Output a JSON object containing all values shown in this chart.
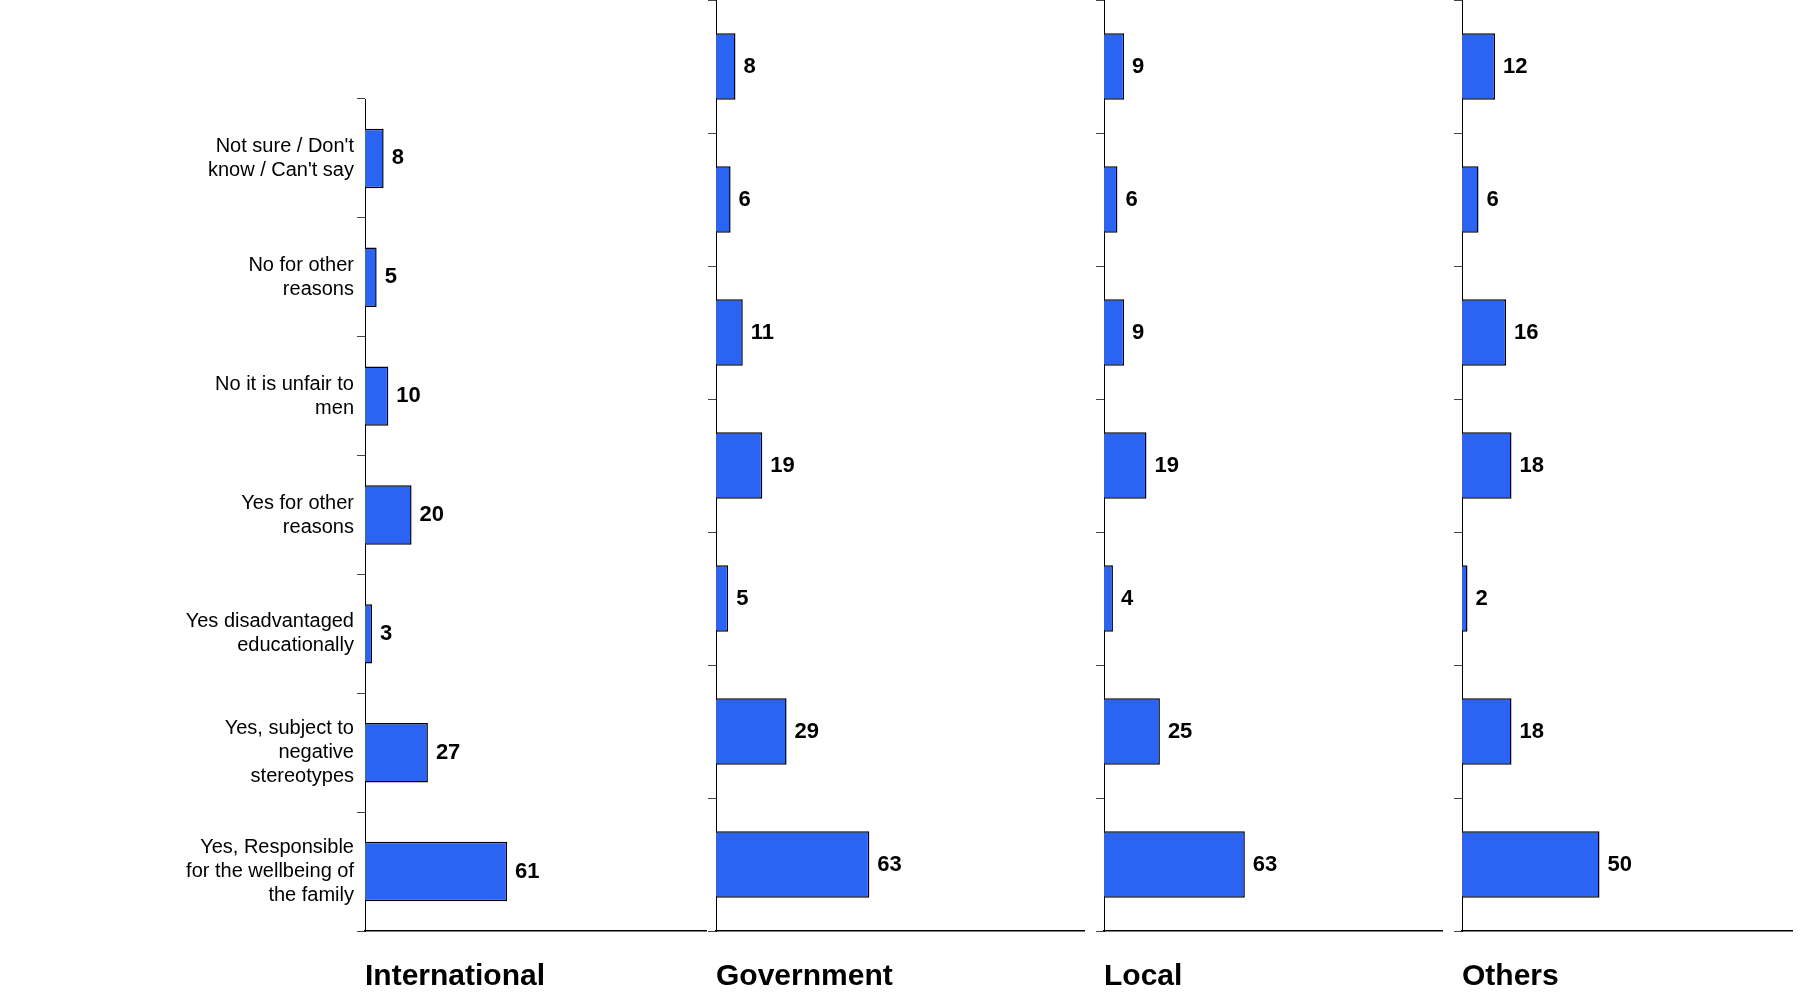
{
  "chart_data": [
    {
      "type": "bar",
      "orientation": "horizontal",
      "xlabel": "International",
      "categories": [
        "Not sure / Don't know / Can't say",
        "No for other reasons",
        "No it is unfair to men",
        "Yes for other reasons",
        "Yes disadvantaged educationally",
        "Yes, subject to negative stereotypes",
        "Yes, Responsible for the wellbeing of the family"
      ],
      "values": [
        8,
        5,
        10,
        20,
        3,
        27,
        61
      ],
      "color": "#2b64f2",
      "data_labels": true,
      "tick_labels": "y"
    },
    {
      "type": "bar",
      "orientation": "horizontal",
      "xlabel": "Government",
      "categories": [
        null,
        null,
        null,
        null,
        null,
        null,
        null
      ],
      "values": [
        8,
        6,
        11,
        19,
        5,
        29,
        63
      ],
      "color": "#2b64f2",
      "data_labels": true,
      "tick_labels": false
    },
    {
      "type": "bar",
      "orientation": "horizontal",
      "xlabel": "Local",
      "categories": [
        null,
        null,
        null,
        null,
        null,
        null,
        null
      ],
      "values": [
        9,
        6,
        9,
        19,
        4,
        25,
        63
      ],
      "color": "#2b64f2",
      "data_labels": true,
      "tick_labels": false
    },
    {
      "type": "bar",
      "orientation": "horizontal",
      "xlabel": "Others",
      "categories": [
        null,
        null,
        null,
        null,
        null,
        null,
        null
      ],
      "values": [
        12,
        6,
        16,
        18,
        2,
        18,
        50
      ],
      "color": "#2b64f2",
      "data_labels": true,
      "tick_labels": false
    }
  ]
}
